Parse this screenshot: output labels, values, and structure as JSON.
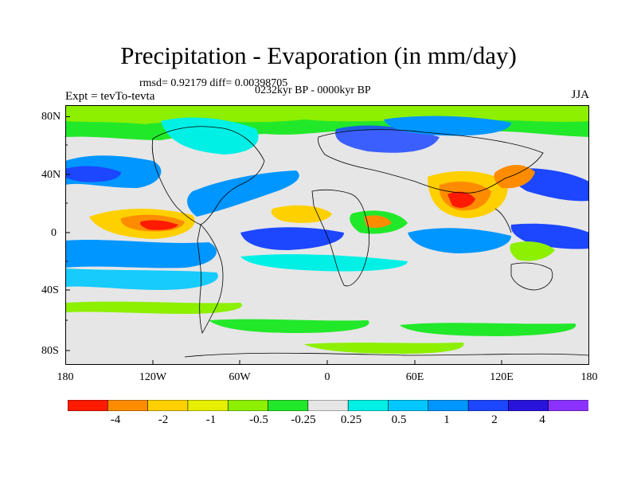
{
  "title": "Precipitation - Evaporation (in mm/day)",
  "stats": "rmsd= 0.92179 diff= 0.00398705",
  "period": "0232kyr BP - 0000kyr BP",
  "experiment": "Expt = tevTo-tevta",
  "season": "JJA",
  "y_ticks": [
    "80N",
    "40N",
    "0",
    "40S",
    "80S"
  ],
  "x_ticks": [
    "180",
    "120W",
    "60W",
    "0",
    "60E",
    "120E",
    "180"
  ],
  "colorbar": {
    "labels": [
      "-4",
      "-2",
      "-1",
      "-0.5",
      "-0.25",
      "0.25",
      "0.5",
      "1",
      "2",
      "4"
    ],
    "colors": [
      "#ff1a00",
      "#ff8c00",
      "#ffd000",
      "#e6ef00",
      "#8cf000",
      "#22e82a",
      "#e6e6e6",
      "#00f0e6",
      "#00c8ff",
      "#0096ff",
      "#1c46ff",
      "#2814dc",
      "#8c32ff"
    ]
  }
}
